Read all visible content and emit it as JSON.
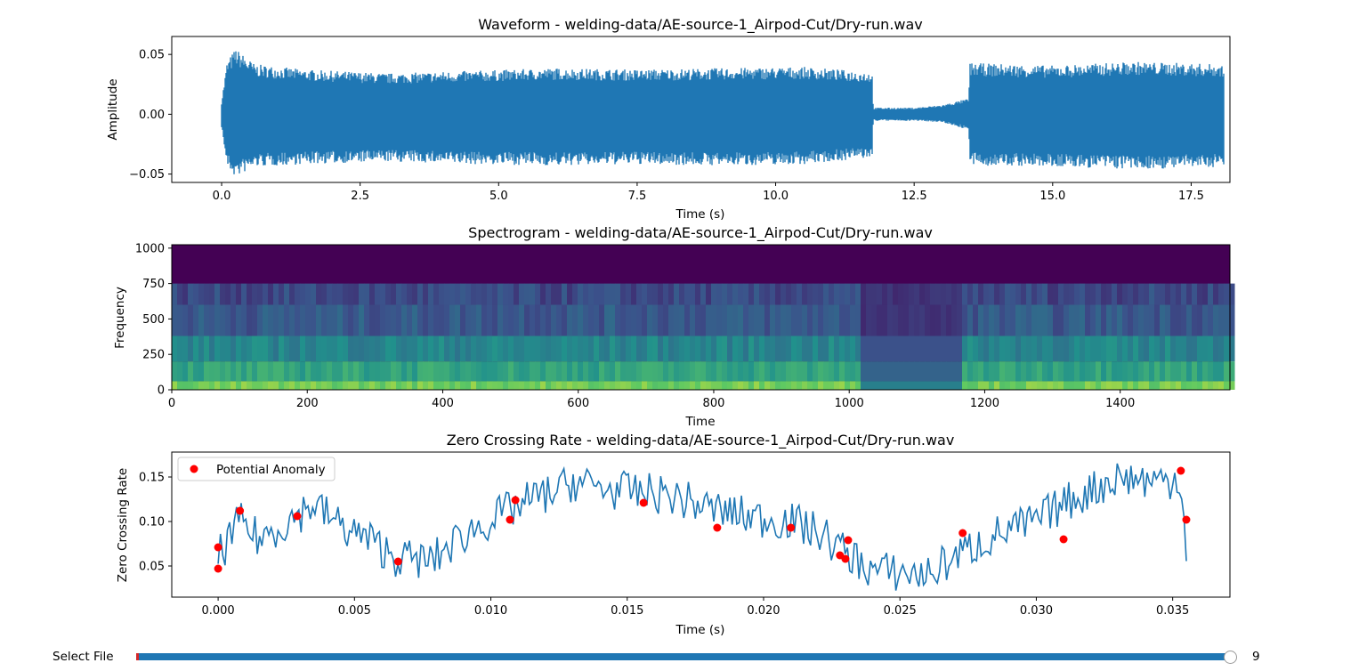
{
  "colors": {
    "line": "#1f77b4",
    "anomaly": "#ff0000",
    "slider": "#1f77b4"
  },
  "chart_data": [
    {
      "type": "line",
      "title": "Waveform - welding-data/AE-source-1_Airpod-Cut/Dry-run.wav",
      "xlabel": "Time (s)",
      "ylabel": "Amplitude",
      "xlim": [
        -0.9,
        18.2
      ],
      "ylim": [
        -0.057,
        0.065
      ],
      "xticks": [
        0.0,
        2.5,
        5.0,
        7.5,
        10.0,
        12.5,
        15.0,
        17.5
      ],
      "xtick_labels": [
        "0.0",
        "2.5",
        "5.0",
        "7.5",
        "10.0",
        "12.5",
        "15.0",
        "17.5"
      ],
      "yticks": [
        -0.05,
        0.0,
        0.05
      ],
      "ytick_labels": [
        "−0.05",
        "0.00",
        "0.05"
      ],
      "envelope": {
        "x": [
          0.0,
          0.1,
          0.25,
          0.6,
          1.5,
          3.0,
          4.5,
          6.0,
          7.5,
          9.0,
          10.5,
          11.75,
          11.76,
          12.5,
          13.0,
          13.49,
          13.5,
          15.0,
          16.5,
          18.1
        ],
        "upper": [
          0.01,
          0.04,
          0.05,
          0.038,
          0.034,
          0.031,
          0.033,
          0.035,
          0.034,
          0.035,
          0.036,
          0.032,
          0.005,
          0.005,
          0.007,
          0.012,
          0.039,
          0.037,
          0.04,
          0.038
        ],
        "lower": [
          -0.01,
          -0.04,
          -0.048,
          -0.04,
          -0.038,
          -0.036,
          -0.038,
          -0.039,
          -0.038,
          -0.039,
          -0.038,
          -0.033,
          -0.005,
          -0.005,
          -0.006,
          -0.012,
          -0.039,
          -0.04,
          -0.042,
          -0.04
        ]
      },
      "grid": false
    },
    {
      "type": "heatmap",
      "title": "Spectrogram - welding-data/AE-source-1_Airpod-Cut/Dry-run.wav",
      "xlabel": "Time",
      "ylabel": "Frequency",
      "xlim": [
        0,
        1562
      ],
      "ylim": [
        0,
        1024
      ],
      "xticks": [
        0,
        200,
        400,
        600,
        800,
        1000,
        1200,
        1400
      ],
      "xtick_labels": [
        "0",
        "200",
        "400",
        "600",
        "800",
        "1000",
        "1200",
        "1400"
      ],
      "yticks": [
        0,
        250,
        500,
        750,
        1000
      ],
      "ytick_labels": [
        "0",
        "250",
        "500",
        "750",
        "1000"
      ],
      "colormap": "viridis",
      "bands": [
        {
          "f_from": 750,
          "f_to": 1024,
          "intensity": 0.0
        },
        {
          "f_from": 600,
          "f_to": 750,
          "intensity": 0.22
        },
        {
          "f_from": 380,
          "f_to": 600,
          "intensity": 0.28
        },
        {
          "f_from": 200,
          "f_to": 380,
          "intensity": 0.45
        },
        {
          "f_from": 60,
          "f_to": 200,
          "intensity": 0.58
        },
        {
          "f_from": 0,
          "f_to": 60,
          "intensity": 0.78
        }
      ],
      "quiet_segment": {
        "t_from": 1015,
        "t_to": 1165
      },
      "grid": false
    },
    {
      "type": "line",
      "title": "Zero Crossing Rate - welding-data/AE-source-1_Airpod-Cut/Dry-run.wav",
      "xlabel": "Time (s)",
      "ylabel": "Zero Crossing Rate",
      "xlim": [
        -0.0017,
        0.0371
      ],
      "ylim": [
        0.015,
        0.178
      ],
      "xticks": [
        0.0,
        0.005,
        0.01,
        0.015,
        0.02,
        0.025,
        0.03,
        0.035
      ],
      "xtick_labels": [
        "0.000",
        "0.005",
        "0.010",
        "0.015",
        "0.020",
        "0.025",
        "0.030",
        "0.035"
      ],
      "yticks": [
        0.05,
        0.1,
        0.15
      ],
      "ytick_labels": [
        "0.05",
        "0.10",
        "0.15"
      ],
      "legend": {
        "position": "top-left",
        "entries": [
          "Potential Anomaly"
        ]
      },
      "trend": {
        "x": [
          0.0,
          0.0008,
          0.0015,
          0.0028,
          0.0035,
          0.0045,
          0.0055,
          0.0065,
          0.0078,
          0.009,
          0.0105,
          0.0115,
          0.0125,
          0.013,
          0.0145,
          0.0165,
          0.018,
          0.0195,
          0.021,
          0.0222,
          0.023,
          0.024,
          0.026,
          0.027,
          0.0285,
          0.03,
          0.031,
          0.032,
          0.033,
          0.0345,
          0.0353,
          0.0355
        ],
        "y": [
          0.06,
          0.1,
          0.08,
          0.105,
          0.12,
          0.095,
          0.08,
          0.06,
          0.055,
          0.085,
          0.11,
          0.125,
          0.135,
          0.145,
          0.135,
          0.13,
          0.115,
          0.105,
          0.1,
          0.085,
          0.065,
          0.045,
          0.04,
          0.06,
          0.085,
          0.1,
          0.12,
          0.135,
          0.15,
          0.145,
          0.15,
          0.065
        ]
      },
      "anomalies": {
        "x": [
          0.0,
          0.0,
          0.0008,
          0.0029,
          0.0066,
          0.0107,
          0.0109,
          0.0156,
          0.0183,
          0.021,
          0.0228,
          0.023,
          0.0231,
          0.0273,
          0.031,
          0.0353,
          0.0355
        ],
        "y": [
          0.047,
          0.071,
          0.112,
          0.106,
          0.055,
          0.102,
          0.124,
          0.121,
          0.093,
          0.093,
          0.062,
          0.058,
          0.079,
          0.087,
          0.08,
          0.157,
          0.102
        ]
      },
      "grid": false
    }
  ],
  "slider": {
    "label": "Select File",
    "value": "9"
  }
}
